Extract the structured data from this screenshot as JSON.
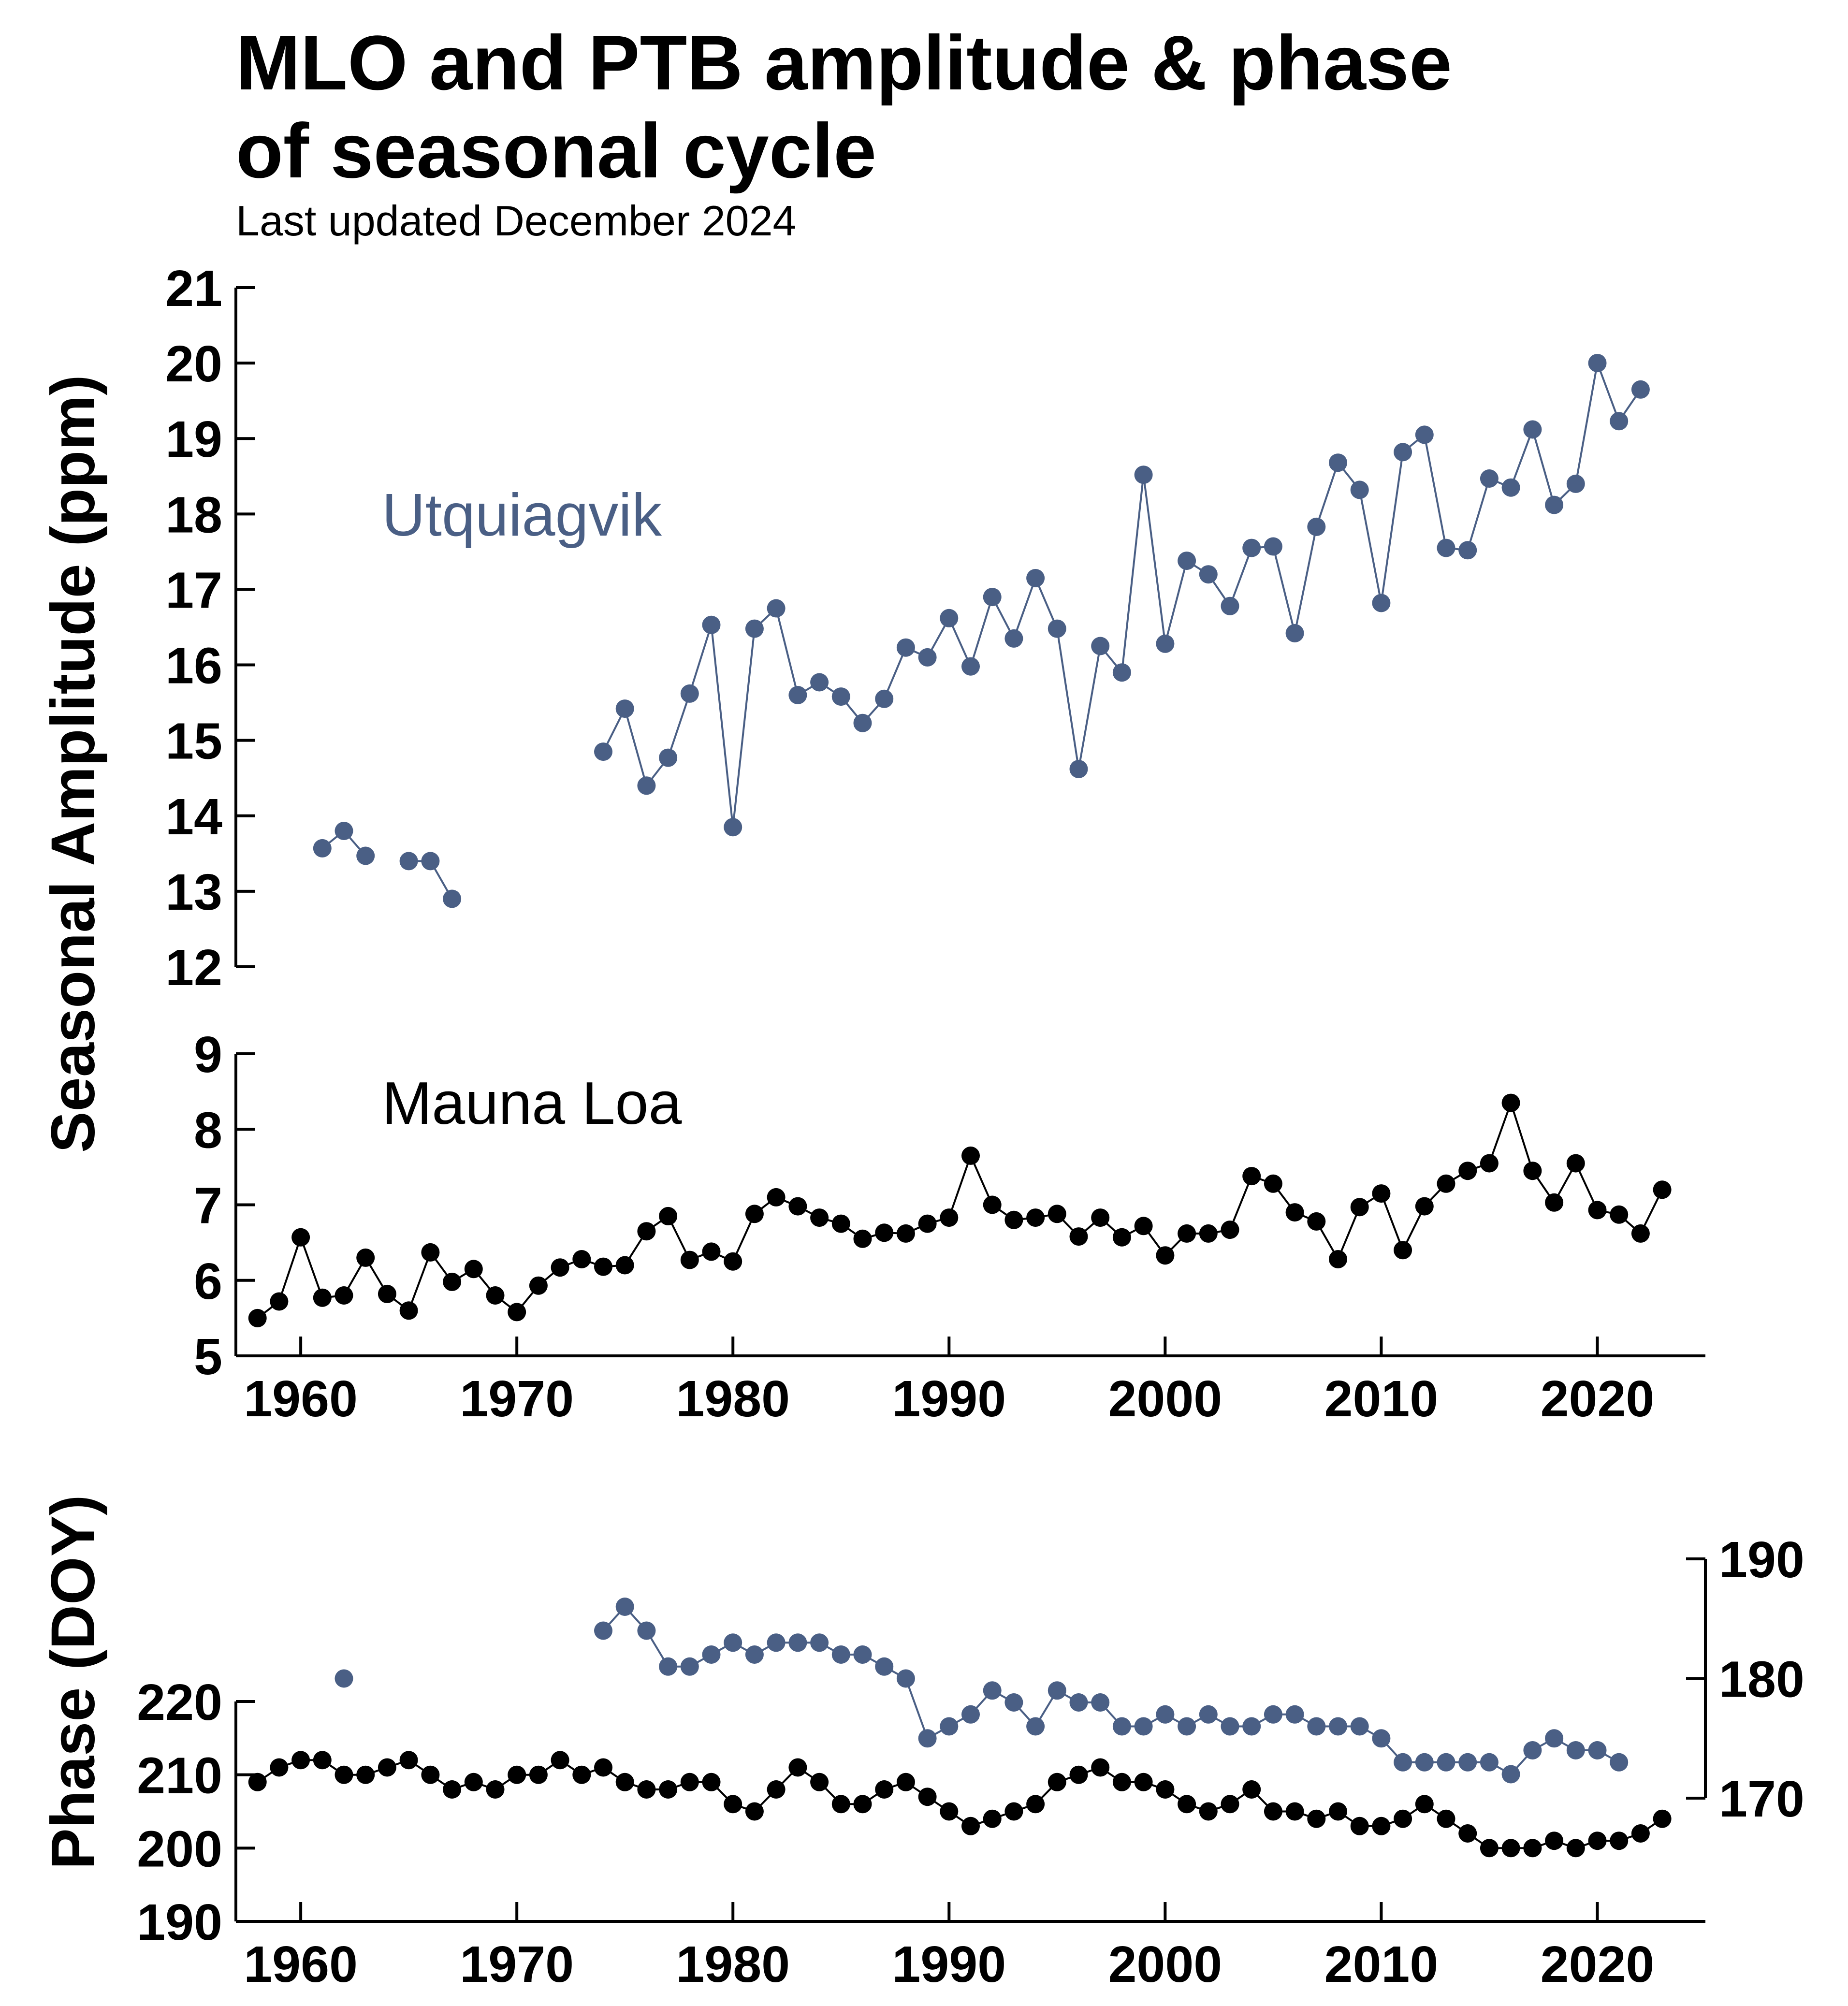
{
  "title_line1": "MLO and PTB amplitude & phase",
  "title_line2": "of seasonal cycle",
  "subtitle": "Last updated December 2024",
  "colors": {
    "barrow": "#4a5f85",
    "mlo": "#000000"
  },
  "chart_data": [
    {
      "type": "line",
      "panel": "amplitude-barrow",
      "series_name": "Utquiagvik",
      "ylabel": "Seasonal Amplitude (ppm)",
      "ylim": [
        12,
        21
      ],
      "yticks": [
        12,
        13,
        14,
        15,
        16,
        17,
        18,
        19,
        20,
        21
      ],
      "xlim": [
        1957,
        2025
      ],
      "points": [
        [
          1961,
          13.57
        ],
        [
          1962,
          13.8
        ],
        [
          1963,
          13.47
        ],
        [
          1965,
          13.4
        ],
        [
          1966,
          13.4
        ],
        [
          1967,
          12.9
        ],
        [
          1974,
          14.85
        ],
        [
          1975,
          15.42
        ],
        [
          1976,
          14.4
        ],
        [
          1977,
          14.77
        ],
        [
          1978,
          15.62
        ],
        [
          1979,
          16.53
        ],
        [
          1980,
          13.85
        ],
        [
          1981,
          16.48
        ],
        [
          1982,
          16.75
        ],
        [
          1983,
          15.6
        ],
        [
          1984,
          15.77
        ],
        [
          1985,
          15.58
        ],
        [
          1986,
          15.23
        ],
        [
          1987,
          15.55
        ],
        [
          1988,
          16.23
        ],
        [
          1989,
          16.1
        ],
        [
          1990,
          16.62
        ],
        [
          1991,
          15.98
        ],
        [
          1992,
          16.9
        ],
        [
          1993,
          16.35
        ],
        [
          1994,
          17.15
        ],
        [
          1995,
          16.48
        ],
        [
          1996,
          14.62
        ],
        [
          1997,
          16.25
        ],
        [
          1998,
          15.9
        ],
        [
          1999,
          18.52
        ],
        [
          2000,
          16.28
        ],
        [
          2001,
          17.38
        ],
        [
          2002,
          17.2
        ],
        [
          2003,
          16.78
        ],
        [
          2004,
          17.55
        ],
        [
          2005,
          17.57
        ],
        [
          2006,
          16.42
        ],
        [
          2007,
          17.83
        ],
        [
          2008,
          18.68
        ],
        [
          2009,
          18.32
        ],
        [
          2010,
          16.82
        ],
        [
          2011,
          18.82
        ],
        [
          2012,
          19.05
        ],
        [
          2013,
          17.55
        ],
        [
          2014,
          17.52
        ],
        [
          2015,
          18.47
        ],
        [
          2016,
          18.35
        ],
        [
          2017,
          19.12
        ],
        [
          2018,
          18.12
        ],
        [
          2019,
          18.4
        ],
        [
          2020,
          20.0
        ],
        [
          2021,
          19.23
        ],
        [
          2022,
          19.65
        ]
      ]
    },
    {
      "type": "line",
      "panel": "amplitude-mlo",
      "series_name": "Mauna Loa",
      "ylim": [
        5,
        9
      ],
      "yticks": [
        5,
        6,
        7,
        8,
        9
      ],
      "xlim": [
        1957,
        2025
      ],
      "xticks": [
        1960,
        1970,
        1980,
        1990,
        2000,
        2010,
        2020
      ],
      "points": [
        [
          1958,
          5.5
        ],
        [
          1959,
          5.72
        ],
        [
          1960,
          6.57
        ],
        [
          1961,
          5.77
        ],
        [
          1962,
          5.8
        ],
        [
          1963,
          6.3
        ],
        [
          1964,
          5.82
        ],
        [
          1965,
          5.6
        ],
        [
          1966,
          6.37
        ],
        [
          1967,
          5.98
        ],
        [
          1968,
          6.15
        ],
        [
          1969,
          5.8
        ],
        [
          1970,
          5.58
        ],
        [
          1971,
          5.93
        ],
        [
          1972,
          6.17
        ],
        [
          1973,
          6.28
        ],
        [
          1974,
          6.18
        ],
        [
          1975,
          6.2
        ],
        [
          1976,
          6.65
        ],
        [
          1977,
          6.85
        ],
        [
          1978,
          6.27
        ],
        [
          1979,
          6.38
        ],
        [
          1980,
          6.25
        ],
        [
          1981,
          6.88
        ],
        [
          1982,
          7.1
        ],
        [
          1983,
          6.98
        ],
        [
          1984,
          6.83
        ],
        [
          1985,
          6.75
        ],
        [
          1986,
          6.55
        ],
        [
          1987,
          6.63
        ],
        [
          1988,
          6.62
        ],
        [
          1989,
          6.75
        ],
        [
          1990,
          6.83
        ],
        [
          1991,
          7.65
        ],
        [
          1992,
          7.0
        ],
        [
          1993,
          6.8
        ],
        [
          1994,
          6.83
        ],
        [
          1995,
          6.88
        ],
        [
          1996,
          6.58
        ],
        [
          1997,
          6.83
        ],
        [
          1998,
          6.57
        ],
        [
          1999,
          6.72
        ],
        [
          2000,
          6.33
        ],
        [
          2001,
          6.62
        ],
        [
          2002,
          6.62
        ],
        [
          2003,
          6.67
        ],
        [
          2004,
          7.38
        ],
        [
          2005,
          7.28
        ],
        [
          2006,
          6.9
        ],
        [
          2007,
          6.78
        ],
        [
          2008,
          6.28
        ],
        [
          2009,
          6.97
        ],
        [
          2010,
          7.15
        ],
        [
          2011,
          6.4
        ],
        [
          2012,
          6.98
        ],
        [
          2013,
          7.28
        ],
        [
          2014,
          7.45
        ],
        [
          2015,
          7.55
        ],
        [
          2016,
          8.35
        ],
        [
          2017,
          7.45
        ],
        [
          2018,
          7.03
        ],
        [
          2019,
          7.55
        ],
        [
          2020,
          6.93
        ],
        [
          2021,
          6.87
        ],
        [
          2022,
          6.62
        ],
        [
          2023,
          7.2
        ]
      ]
    },
    {
      "type": "line",
      "panel": "phase",
      "ylabel": "Phase (DOY)",
      "xlim": [
        1957,
        2025
      ],
      "xticks": [
        1960,
        1970,
        1980,
        1990,
        2000,
        2010,
        2020
      ],
      "left_axis": {
        "ylim": [
          190,
          220
        ],
        "yticks": [
          190,
          200,
          210,
          220
        ]
      },
      "right_axis": {
        "ylim": [
          170,
          190
        ],
        "yticks": [
          170,
          180,
          190
        ]
      },
      "series": [
        {
          "name": "Mauna Loa",
          "axis": "left",
          "points": [
            [
              1958,
              209
            ],
            [
              1959,
              211
            ],
            [
              1960,
              212
            ],
            [
              1961,
              212
            ],
            [
              1962,
              210
            ],
            [
              1963,
              210
            ],
            [
              1964,
              211
            ],
            [
              1965,
              212
            ],
            [
              1966,
              210
            ],
            [
              1967,
              208
            ],
            [
              1968,
              209
            ],
            [
              1969,
              208
            ],
            [
              1970,
              210
            ],
            [
              1971,
              210
            ],
            [
              1972,
              212
            ],
            [
              1973,
              210
            ],
            [
              1974,
              211
            ],
            [
              1975,
              209
            ],
            [
              1976,
              208
            ],
            [
              1977,
              208
            ],
            [
              1978,
              209
            ],
            [
              1979,
              209
            ],
            [
              1980,
              206
            ],
            [
              1981,
              205
            ],
            [
              1982,
              208
            ],
            [
              1983,
              211
            ],
            [
              1984,
              209
            ],
            [
              1985,
              206
            ],
            [
              1986,
              206
            ],
            [
              1987,
              208
            ],
            [
              1988,
              209
            ],
            [
              1989,
              207
            ],
            [
              1990,
              205
            ],
            [
              1991,
              203
            ],
            [
              1992,
              204
            ],
            [
              1993,
              205
            ],
            [
              1994,
              206
            ],
            [
              1995,
              209
            ],
            [
              1996,
              210
            ],
            [
              1997,
              211
            ],
            [
              1998,
              209
            ],
            [
              1999,
              209
            ],
            [
              2000,
              208
            ],
            [
              2001,
              206
            ],
            [
              2002,
              205
            ],
            [
              2003,
              206
            ],
            [
              2004,
              208
            ],
            [
              2005,
              205
            ],
            [
              2006,
              205
            ],
            [
              2007,
              204
            ],
            [
              2008,
              205
            ],
            [
              2009,
              203
            ],
            [
              2010,
              203
            ],
            [
              2011,
              204
            ],
            [
              2012,
              206
            ],
            [
              2013,
              204
            ],
            [
              2014,
              202
            ],
            [
              2015,
              200
            ],
            [
              2016,
              200
            ],
            [
              2017,
              200
            ],
            [
              2018,
              201
            ],
            [
              2019,
              200
            ],
            [
              2020,
              201
            ],
            [
              2021,
              201
            ],
            [
              2022,
              202
            ],
            [
              2023,
              204
            ]
          ]
        },
        {
          "name": "Utquiagvik",
          "axis": "right",
          "points": [
            [
              1962,
              180
            ],
            [
              1974,
              184
            ],
            [
              1975,
              186
            ],
            [
              1976,
              184
            ],
            [
              1977,
              181
            ],
            [
              1978,
              181
            ],
            [
              1979,
              182
            ],
            [
              1980,
              183
            ],
            [
              1981,
              182
            ],
            [
              1982,
              183
            ],
            [
              1983,
              183
            ],
            [
              1984,
              183
            ],
            [
              1985,
              182
            ],
            [
              1986,
              182
            ],
            [
              1987,
              181
            ],
            [
              1988,
              180
            ],
            [
              1989,
              175
            ],
            [
              1990,
              176
            ],
            [
              1991,
              177
            ],
            [
              1992,
              179
            ],
            [
              1993,
              178
            ],
            [
              1994,
              176
            ],
            [
              1995,
              179
            ],
            [
              1996,
              178
            ],
            [
              1997,
              178
            ],
            [
              1998,
              176
            ],
            [
              1999,
              176
            ],
            [
              2000,
              177
            ],
            [
              2001,
              176
            ],
            [
              2002,
              177
            ],
            [
              2003,
              176
            ],
            [
              2004,
              176
            ],
            [
              2005,
              177
            ],
            [
              2006,
              177
            ],
            [
              2007,
              176
            ],
            [
              2008,
              176
            ],
            [
              2009,
              176
            ],
            [
              2010,
              175
            ],
            [
              2011,
              173
            ],
            [
              2012,
              173
            ],
            [
              2013,
              173
            ],
            [
              2014,
              173
            ],
            [
              2015,
              173
            ],
            [
              2016,
              172
            ],
            [
              2017,
              174
            ],
            [
              2018,
              175
            ],
            [
              2019,
              174
            ],
            [
              2020,
              174
            ],
            [
              2021,
              173
            ]
          ]
        }
      ]
    }
  ]
}
